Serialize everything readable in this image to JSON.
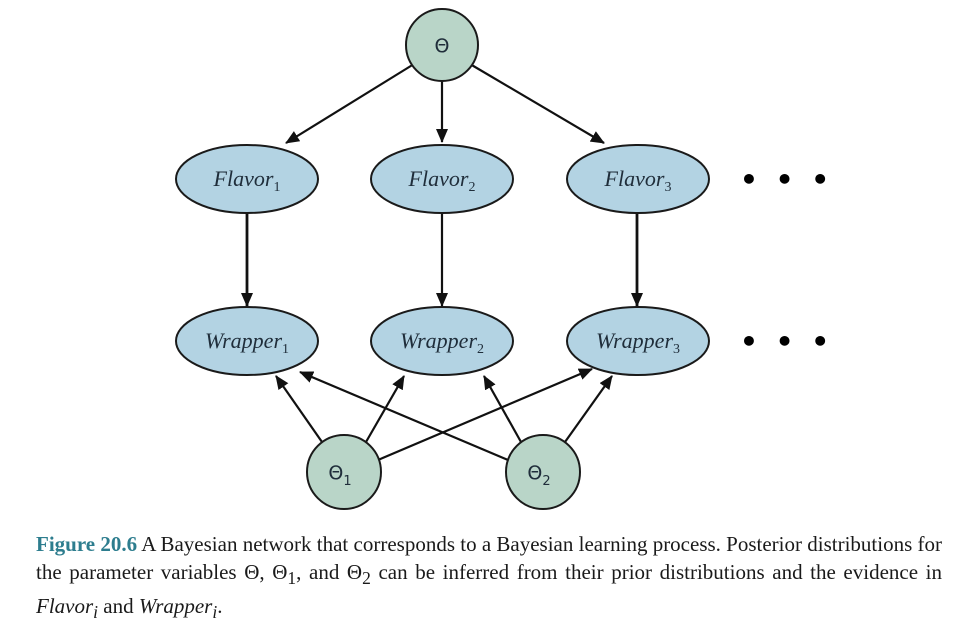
{
  "nodes": {
    "theta": {
      "label": "Θ"
    },
    "flavor1": {
      "base": "Flavor",
      "sub": "1"
    },
    "flavor2": {
      "base": "Flavor",
      "sub": "2"
    },
    "flavor3": {
      "base": "Flavor",
      "sub": "3"
    },
    "wrapper1": {
      "base": "Wrapper",
      "sub": "1"
    },
    "wrapper2": {
      "base": "Wrapper",
      "sub": "2"
    },
    "wrapper3": {
      "base": "Wrapper",
      "sub": "3"
    },
    "theta1": {
      "base": "Θ",
      "sub": "1"
    },
    "theta2": {
      "base": "Θ",
      "sub": "2"
    }
  },
  "ellipsis": "• • •",
  "colors": {
    "parameter_node": "#b9d5c8",
    "variable_node": "#b3d3e3",
    "stroke": "#1a1a1a",
    "caption_accent": "#2d7d8e"
  },
  "caption": {
    "figure_number": "Figure 20.6",
    "text_1": "A Bayesian network that corresponds to a Bayesian learning process. Posterior distributions for the parameter variables Θ, Θ",
    "sub_1": "1",
    "text_2": ", and Θ",
    "sub_2": "2",
    "text_3": " can be inferred from their prior distributions and the evidence in ",
    "flavor_term": "Flavor",
    "sub_i1": "i",
    "text_4": " and ",
    "wrapper_term": "Wrapper",
    "sub_i2": "i",
    "text_5": "."
  }
}
